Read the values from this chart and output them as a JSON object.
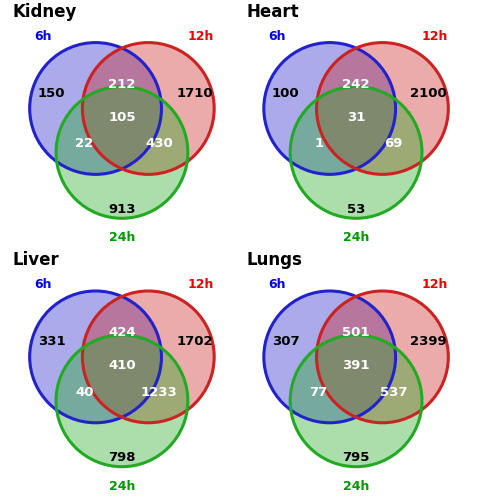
{
  "panels": [
    {
      "title": "Kidney",
      "only_6h": "150",
      "only_12h": "1710",
      "only_24h": "913",
      "intersect_6h_12h": "212",
      "intersect_6h_24h": "22",
      "intersect_12h_24h": "430",
      "intersect_all": "105"
    },
    {
      "title": "Heart",
      "only_6h": "100",
      "only_12h": "2100",
      "only_24h": "53",
      "intersect_6h_12h": "242",
      "intersect_6h_24h": "1",
      "intersect_12h_24h": "69",
      "intersect_all": "31"
    },
    {
      "title": "Liver",
      "only_6h": "331",
      "only_12h": "1702",
      "only_24h": "798",
      "intersect_6h_12h": "424",
      "intersect_6h_24h": "40",
      "intersect_12h_24h": "1233",
      "intersect_all": "410"
    },
    {
      "title": "Lungs",
      "only_6h": "307",
      "only_12h": "2399",
      "only_24h": "795",
      "intersect_6h_12h": "501",
      "intersect_6h_24h": "77",
      "intersect_12h_24h": "537",
      "intersect_all": "391"
    }
  ],
  "color_6h": "#2222cc",
  "color_12h": "#cc2222",
  "color_24h": "#22aa22",
  "alpha": 0.38,
  "label_color_6h": "#0000ee",
  "label_color_12h": "#ee0000",
  "label_color_24h": "#009900",
  "title_fontsize": 12,
  "label_fontsize": 9,
  "number_fontsize": 9.5,
  "bg_color": "#ffffff"
}
